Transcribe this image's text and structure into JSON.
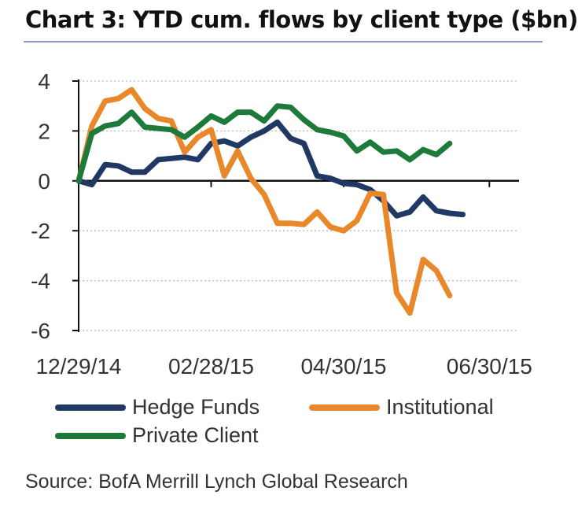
{
  "title": "Chart 3: YTD cum. flows by client type ($bn)",
  "source": "Source: BofA Merrill Lynch Global Research",
  "chart_data": {
    "type": "line",
    "title": "Chart 3: YTD cum. flows by client type ($bn)",
    "xlabel": "",
    "ylabel": "",
    "ylim": [
      -6,
      4
    ],
    "yticks": [
      "4",
      "2",
      "0",
      "-2",
      "-4",
      "-6"
    ],
    "ytick_values": [
      4,
      2,
      0,
      -2,
      -4,
      -6
    ],
    "xticks": [
      "12/29/14",
      "02/28/15",
      "04/30/15",
      "06/30/15"
    ],
    "xtick_index": [
      0,
      10,
      20,
      31
    ],
    "n_points": 34,
    "grid": "horizontal-dashed",
    "legend_placement": "bottom",
    "series": [
      {
        "name": "Hedge Funds",
        "color": "#1f3864",
        "values": [
          0.0,
          -0.15,
          0.65,
          0.6,
          0.35,
          0.35,
          0.85,
          0.9,
          0.95,
          0.85,
          1.5,
          1.6,
          1.4,
          1.75,
          2.0,
          2.35,
          1.7,
          1.5,
          0.2,
          0.1,
          -0.1,
          -0.15,
          -0.35,
          -0.8,
          -1.4,
          -1.25,
          -0.65,
          -1.2,
          -1.3,
          -1.35
        ]
      },
      {
        "name": "Institutional",
        "color": "#e8882a",
        "values": [
          0.0,
          2.2,
          3.2,
          3.3,
          3.65,
          2.9,
          2.5,
          2.4,
          1.15,
          1.75,
          2.05,
          0.2,
          1.2,
          0.1,
          -0.55,
          -1.7,
          -1.7,
          -1.75,
          -1.25,
          -1.85,
          -2.0,
          -1.6,
          -0.5,
          -0.55,
          -4.5,
          -5.3,
          -3.15,
          -3.6,
          -4.6
        ]
      },
      {
        "name": "Private Client",
        "color": "#1e7a3a",
        "values": [
          0.0,
          1.9,
          2.2,
          2.3,
          2.75,
          2.15,
          2.1,
          2.05,
          1.75,
          2.15,
          2.6,
          2.35,
          2.75,
          2.75,
          2.4,
          3.0,
          2.95,
          2.45,
          2.05,
          1.95,
          1.8,
          1.2,
          1.55,
          1.15,
          1.2,
          0.85,
          1.25,
          1.05,
          1.5
        ]
      }
    ]
  }
}
